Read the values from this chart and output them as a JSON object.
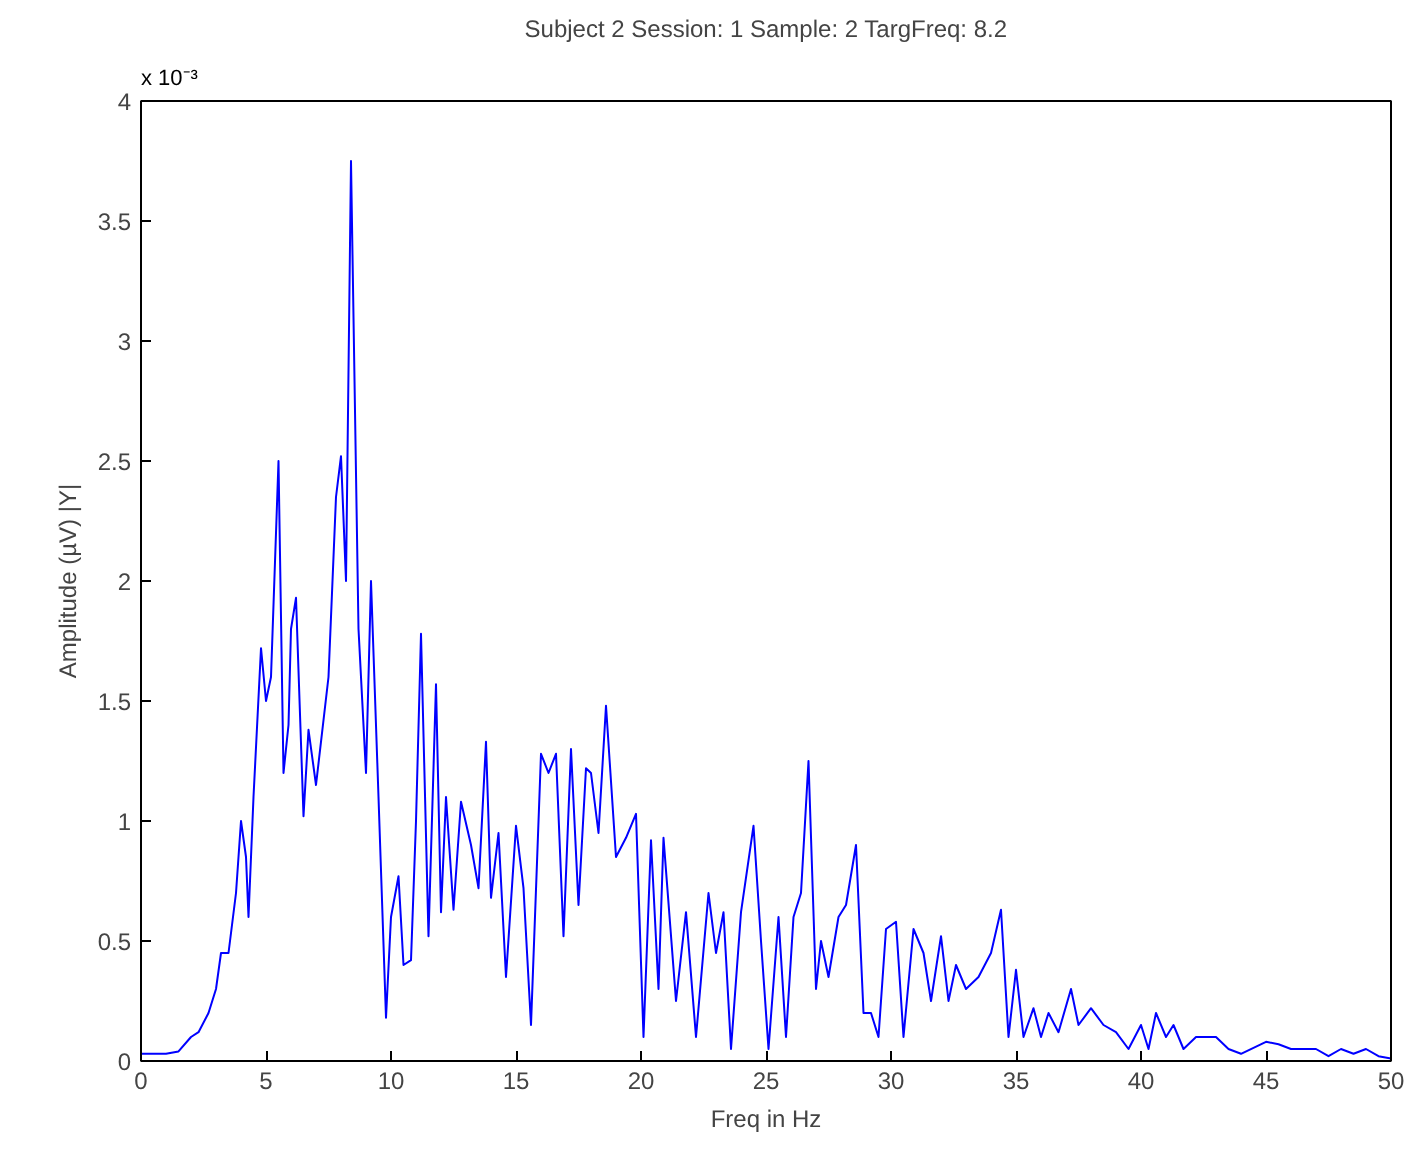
{
  "chart_data": {
    "type": "line",
    "title": "Subject 2 Session: 1 Sample: 2 TargFreq: 8.2",
    "xlabel": "Freq in Hz",
    "ylabel": "Amplitude (µV) |Y|",
    "annotations": [
      "x 10⁻³"
    ],
    "x": [
      0,
      1,
      1.5,
      2,
      2.3,
      2.7,
      3,
      3.2,
      3.5,
      3.8,
      4,
      4.2,
      4.3,
      4.5,
      4.8,
      5,
      5.2,
      5.5,
      5.7,
      5.9,
      6,
      6.2,
      6.5,
      6.7,
      7,
      7.5,
      7.8,
      8,
      8.2,
      8.4,
      8.7,
      9,
      9.2,
      9.5,
      9.8,
      10,
      10.3,
      10.5,
      10.8,
      11,
      11.2,
      11.5,
      11.8,
      12,
      12.2,
      12.5,
      12.8,
      13.2,
      13.5,
      13.8,
      14,
      14.3,
      14.6,
      15,
      15.3,
      15.6,
      16,
      16.3,
      16.6,
      16.9,
      17.2,
      17.5,
      17.8,
      18,
      18.3,
      18.6,
      19,
      19.4,
      19.8,
      20.1,
      20.4,
      20.7,
      20.9,
      21.4,
      21.8,
      22.2,
      22.7,
      23,
      23.3,
      23.6,
      24,
      24.5,
      24.8,
      25.1,
      25.5,
      25.8,
      26.1,
      26.4,
      26.7,
      27,
      27.2,
      27.5,
      27.9,
      28.2,
      28.6,
      28.9,
      29.2,
      29.5,
      29.8,
      30.2,
      30.5,
      30.9,
      31.3,
      31.6,
      32,
      32.3,
      32.6,
      33,
      33.5,
      34,
      34.4,
      34.7,
      35,
      35.3,
      35.7,
      36,
      36.3,
      36.7,
      37.2,
      37.5,
      38,
      38.5,
      39,
      39.5,
      40,
      40.3,
      40.6,
      41,
      41.3,
      41.7,
      42.2,
      43,
      43.5,
      44,
      45,
      45.5,
      46,
      47,
      47.5,
      48,
      48.5,
      49,
      49.5,
      50
    ],
    "series": [
      {
        "color": "#0000ff",
        "values": [
          0.03,
          0.03,
          0.04,
          0.1,
          0.12,
          0.2,
          0.3,
          0.45,
          0.45,
          0.7,
          1.0,
          0.85,
          0.6,
          1.1,
          1.72,
          1.5,
          1.6,
          2.5,
          1.2,
          1.4,
          1.8,
          1.93,
          1.02,
          1.38,
          1.15,
          1.6,
          2.35,
          2.52,
          2.0,
          3.75,
          1.8,
          1.2,
          2.0,
          1.1,
          0.18,
          0.6,
          0.77,
          0.4,
          0.42,
          1.0,
          1.78,
          0.52,
          1.57,
          0.62,
          1.1,
          0.63,
          1.08,
          0.9,
          0.72,
          1.33,
          0.68,
          0.95,
          0.35,
          0.98,
          0.72,
          0.15,
          1.28,
          1.2,
          1.28,
          0.52,
          1.3,
          0.65,
          1.22,
          1.2,
          0.95,
          1.48,
          0.85,
          0.93,
          1.03,
          0.1,
          0.92,
          0.3,
          0.93,
          0.25,
          0.62,
          0.1,
          0.7,
          0.45,
          0.62,
          0.05,
          0.62,
          0.98,
          0.5,
          0.05,
          0.6,
          0.1,
          0.6,
          0.7,
          1.25,
          0.3,
          0.5,
          0.35,
          0.6,
          0.65,
          0.9,
          0.2,
          0.2,
          0.1,
          0.55,
          0.58,
          0.1,
          0.55,
          0.45,
          0.25,
          0.52,
          0.25,
          0.4,
          0.3,
          0.35,
          0.45,
          0.63,
          0.1,
          0.38,
          0.1,
          0.22,
          0.1,
          0.2,
          0.12,
          0.3,
          0.15,
          0.22,
          0.15,
          0.12,
          0.05,
          0.15,
          0.05,
          0.2,
          0.1,
          0.15,
          0.05,
          0.1,
          0.1,
          0.05,
          0.03,
          0.08,
          0.07,
          0.05,
          0.05,
          0.02,
          0.05,
          0.03,
          0.05,
          0.02,
          0.01
        ]
      }
    ],
    "xlim": [
      0,
      50
    ],
    "xticks": [
      0,
      5,
      10,
      15,
      20,
      25,
      30,
      35,
      40,
      45,
      50
    ],
    "ylim": [
      0,
      4
    ],
    "yticks": [
      0,
      0.5,
      1,
      1.5,
      2,
      2.5,
      3,
      3.5,
      4
    ],
    "line_style": "solid"
  }
}
